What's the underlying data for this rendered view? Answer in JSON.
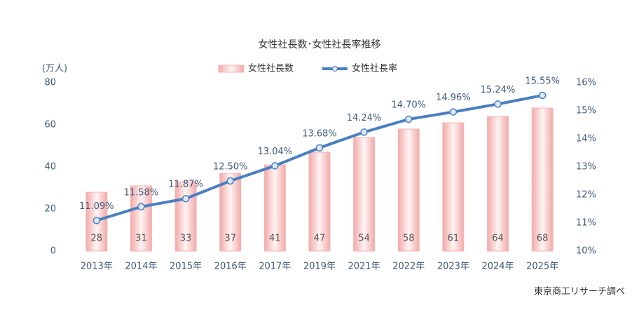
{
  "chart_data": {
    "type": "combo",
    "title": "女性社長数･女性社長率推移",
    "ylabel": "(万人)",
    "source": "東京商工リサーチ調べ",
    "categories": [
      "2013年",
      "2014年",
      "2015年",
      "2016年",
      "2017年",
      "2019年",
      "2021年",
      "2022年",
      "2023年",
      "2024年",
      "2025年"
    ],
    "series": [
      {
        "name": "女性社長数",
        "type": "bar",
        "color": "#f4b6b6",
        "values": [
          28,
          31,
          33,
          37,
          41,
          47,
          54,
          58,
          61,
          64,
          68
        ]
      },
      {
        "name": "女性社長率",
        "type": "line",
        "axis": "y2",
        "color": "#4a7fc1",
        "values": [
          11.09,
          11.58,
          11.87,
          12.5,
          13.04,
          13.68,
          14.24,
          14.7,
          14.96,
          15.24,
          15.55
        ],
        "value_labels": [
          "11.09%",
          "11.58%",
          "11.87%",
          "12.50%",
          "13.04%",
          "13.68%",
          "14.24%",
          "14.70%",
          "14.96%",
          "15.24%",
          "15.55%"
        ]
      }
    ],
    "ylim": [
      0,
      80
    ],
    "yticks": [
      0,
      20,
      40,
      60,
      80
    ],
    "y2lim": [
      10,
      16
    ],
    "y2ticks": [
      {
        "value": 10,
        "label": "10%"
      },
      {
        "value": 11,
        "label": "11%"
      },
      {
        "value": 12,
        "label": "12%"
      },
      {
        "value": 13,
        "label": "13%"
      },
      {
        "value": 14,
        "label": "14%"
      },
      {
        "value": 15,
        "label": "15%"
      },
      {
        "value": 16,
        "label": "16%"
      }
    ],
    "grid": false
  }
}
